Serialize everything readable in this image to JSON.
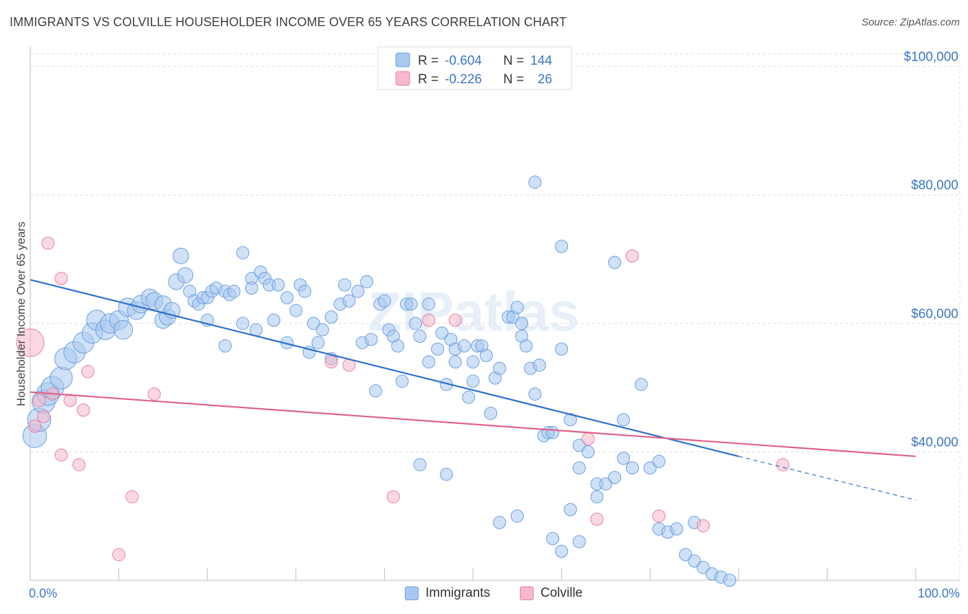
{
  "title": "IMMIGRANTS VS COLVILLE HOUSEHOLDER INCOME OVER 65 YEARS CORRELATION CHART",
  "source": "Source: ZipAtlas.com",
  "watermark": "ZIPatlas",
  "chart_data": {
    "type": "scatter",
    "ylabel": "Householder Income Over 65 years",
    "xlim": [
      0,
      100
    ],
    "ylim": [
      20000,
      102000
    ],
    "x_tick_labels": [
      "0.0%",
      "100.0%"
    ],
    "y_ticks": [
      40000,
      60000,
      80000,
      100000
    ],
    "y_tick_labels": [
      "$40,000",
      "$60,000",
      "$80,000",
      "$100,000"
    ],
    "legend": {
      "position": "top-center",
      "rows": [
        {
          "r_label": "R =",
          "r_value": "-0.604",
          "n_label": "N =",
          "n_value": "144"
        },
        {
          "r_label": "R =",
          "r_value": "-0.226",
          "n_label": "N =",
          "n_value": "26"
        }
      ]
    },
    "series": [
      {
        "name": "Immigrants",
        "color": "#a8c8ef",
        "edge": "#6a9fe0",
        "line_color": "#2a6fd0",
        "trend": {
          "x0": 0,
          "y0": 66800,
          "x1": 80,
          "y1": 39300,
          "dash_to_x": 100,
          "dash_to_y": 32500
        },
        "points": [
          [
            0.5,
            42500
          ],
          [
            1,
            45000
          ],
          [
            1.5,
            47800
          ],
          [
            2,
            49000
          ],
          [
            2.5,
            50000
          ],
          [
            3.5,
            51500
          ],
          [
            4,
            54500
          ],
          [
            5,
            55500
          ],
          [
            6,
            57000
          ],
          [
            7,
            58500
          ],
          [
            7.5,
            60500
          ],
          [
            8.5,
            59000
          ],
          [
            9,
            60000
          ],
          [
            10,
            60500
          ],
          [
            10.5,
            59000
          ],
          [
            11,
            62500
          ],
          [
            12,
            62000
          ],
          [
            12.5,
            63000
          ],
          [
            13.5,
            64000
          ],
          [
            14,
            63500
          ],
          [
            15,
            60500
          ],
          [
            15.5,
            61000
          ],
          [
            15,
            63000
          ],
          [
            16,
            62000
          ],
          [
            16.5,
            66500
          ],
          [
            17,
            70500
          ],
          [
            17.5,
            67500
          ],
          [
            18,
            65000
          ],
          [
            18.5,
            63500
          ],
          [
            19,
            63000
          ],
          [
            19.5,
            64000
          ],
          [
            20,
            60500
          ],
          [
            20,
            64000
          ],
          [
            20.5,
            65000
          ],
          [
            21,
            65500
          ],
          [
            22,
            56500
          ],
          [
            22,
            65000
          ],
          [
            22.5,
            64500
          ],
          [
            23,
            65000
          ],
          [
            24,
            60000
          ],
          [
            24,
            71000
          ],
          [
            25,
            67000
          ],
          [
            25,
            65500
          ],
          [
            25.5,
            59000
          ],
          [
            26,
            68000
          ],
          [
            26.5,
            67000
          ],
          [
            27,
            66000
          ],
          [
            27.5,
            60500
          ],
          [
            28,
            66000
          ],
          [
            29,
            64000
          ],
          [
            29,
            57000
          ],
          [
            30,
            62000
          ],
          [
            30.5,
            66000
          ],
          [
            31,
            65000
          ],
          [
            31.5,
            55500
          ],
          [
            32,
            60000
          ],
          [
            32.5,
            57000
          ],
          [
            33,
            59000
          ],
          [
            34,
            61000
          ],
          [
            34,
            54500
          ],
          [
            35,
            63000
          ],
          [
            35.5,
            66000
          ],
          [
            36,
            63500
          ],
          [
            37,
            65000
          ],
          [
            37.5,
            57000
          ],
          [
            38,
            66500
          ],
          [
            38.5,
            57500
          ],
          [
            39,
            49500
          ],
          [
            39.5,
            63000
          ],
          [
            40,
            63500
          ],
          [
            40.5,
            59000
          ],
          [
            41,
            58000
          ],
          [
            41.5,
            56500
          ],
          [
            42,
            51000
          ],
          [
            42.5,
            63000
          ],
          [
            43,
            63000
          ],
          [
            43.5,
            60000
          ],
          [
            44,
            58000
          ],
          [
            45,
            63000
          ],
          [
            45,
            54000
          ],
          [
            46,
            56000
          ],
          [
            46.5,
            58500
          ],
          [
            47,
            50500
          ],
          [
            47.5,
            57500
          ],
          [
            48,
            54000
          ],
          [
            48,
            56000
          ],
          [
            49,
            56500
          ],
          [
            49.5,
            48500
          ],
          [
            50,
            51000
          ],
          [
            50,
            54000
          ],
          [
            50.5,
            56500
          ],
          [
            51,
            56500
          ],
          [
            51.5,
            55000
          ],
          [
            52,
            46000
          ],
          [
            52.5,
            51500
          ],
          [
            53,
            53000
          ],
          [
            54,
            61000
          ],
          [
            54.5,
            61000
          ],
          [
            55,
            62500
          ],
          [
            55.5,
            58000
          ],
          [
            55.5,
            60000
          ],
          [
            56,
            56500
          ],
          [
            56.5,
            53000
          ],
          [
            57,
            49000
          ],
          [
            57,
            82000
          ],
          [
            57.5,
            53500
          ],
          [
            58,
            42500
          ],
          [
            58.5,
            43000
          ],
          [
            59,
            43000
          ],
          [
            60,
            72000
          ],
          [
            60,
            56000
          ],
          [
            61,
            45000
          ],
          [
            62,
            37500
          ],
          [
            62,
            41000
          ],
          [
            63,
            40000
          ],
          [
            64,
            35000
          ],
          [
            64,
            33000
          ],
          [
            65,
            35000
          ],
          [
            66,
            69500
          ],
          [
            66,
            36000
          ],
          [
            67,
            39000
          ],
          [
            67,
            45000
          ],
          [
            68,
            37500
          ],
          [
            69,
            50500
          ],
          [
            70,
            37500
          ],
          [
            71,
            38500
          ],
          [
            71,
            28000
          ],
          [
            72,
            27500
          ],
          [
            73,
            28000
          ],
          [
            74,
            24000
          ],
          [
            75,
            23000
          ],
          [
            75,
            29000
          ],
          [
            76,
            22000
          ],
          [
            77,
            21000
          ],
          [
            78,
            20500
          ],
          [
            79,
            20000
          ],
          [
            61,
            31000
          ],
          [
            62,
            26000
          ],
          [
            59,
            26500
          ],
          [
            55,
            30000
          ],
          [
            60,
            24500
          ],
          [
            53,
            29000
          ],
          [
            44,
            38000
          ],
          [
            47,
            36500
          ]
        ]
      },
      {
        "name": "Colville",
        "color": "#f6b8cb",
        "edge": "#e87fa0",
        "line_color": "#e0608a",
        "trend": {
          "x0": 0,
          "y0": 49300,
          "x1": 100,
          "y1": 39300
        },
        "points": [
          [
            0,
            57000
          ],
          [
            0.5,
            44000
          ],
          [
            1,
            48000
          ],
          [
            2,
            72500
          ],
          [
            3.5,
            67000
          ],
          [
            3.5,
            39500
          ],
          [
            4.5,
            48000
          ],
          [
            5.5,
            38000
          ],
          [
            6,
            46500
          ],
          [
            6.5,
            52500
          ],
          [
            1.5,
            45500
          ],
          [
            11.5,
            33000
          ],
          [
            10,
            24000
          ],
          [
            14,
            49000
          ],
          [
            34,
            54000
          ],
          [
            36,
            53500
          ],
          [
            41,
            33000
          ],
          [
            45,
            60500
          ],
          [
            48,
            60500
          ],
          [
            63,
            42000
          ],
          [
            64,
            29500
          ],
          [
            68,
            70500
          ],
          [
            71,
            30000
          ],
          [
            76,
            28500
          ],
          [
            85,
            38000
          ],
          [
            2.5,
            49000
          ]
        ]
      }
    ]
  }
}
